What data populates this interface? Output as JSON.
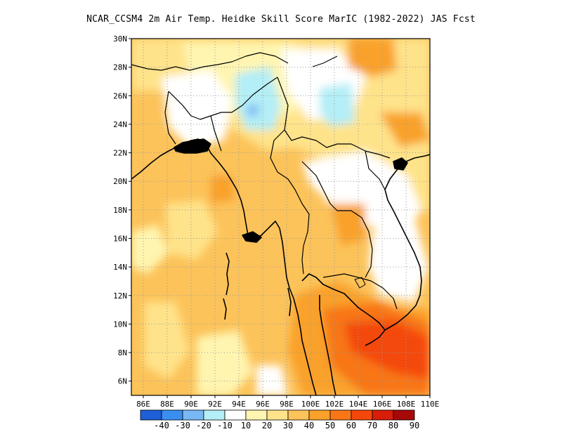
{
  "title": "NCAR_CCSM4  2m Air Temp. Heidke Skill Score MarIC (1982-2022) JAS Fcst",
  "lat_labels": [
    "30N",
    "28N",
    "26N",
    "24N",
    "22N",
    "20N",
    "18N",
    "16N",
    "14N",
    "12N",
    "10N",
    "8N",
    "6N"
  ],
  "lon_labels": [
    "86E",
    "88E",
    "90E",
    "92E",
    "94E",
    "96E",
    "98E",
    "100E",
    "102E",
    "104E",
    "106E",
    "108E",
    "110E"
  ],
  "colorbar": {
    "labels": [
      "-40",
      "-30",
      "-20",
      "-10",
      "10",
      "20",
      "30",
      "40",
      "50",
      "60",
      "70",
      "80",
      "90"
    ],
    "colors": [
      "#1e5fd6",
      "#3a8ef0",
      "#78b8f5",
      "#b4eef6",
      "#ffffff",
      "#fff5b0",
      "#ffe38a",
      "#fcc35a",
      "#f9a12a",
      "#f87616",
      "#f4480b",
      "#d81d09",
      "#a70808"
    ]
  },
  "map": {
    "extent": {
      "lon": [
        85,
        110
      ],
      "lat": [
        5,
        30
      ]
    },
    "gridlines": "dotted",
    "coastline_color": "#000000"
  }
}
